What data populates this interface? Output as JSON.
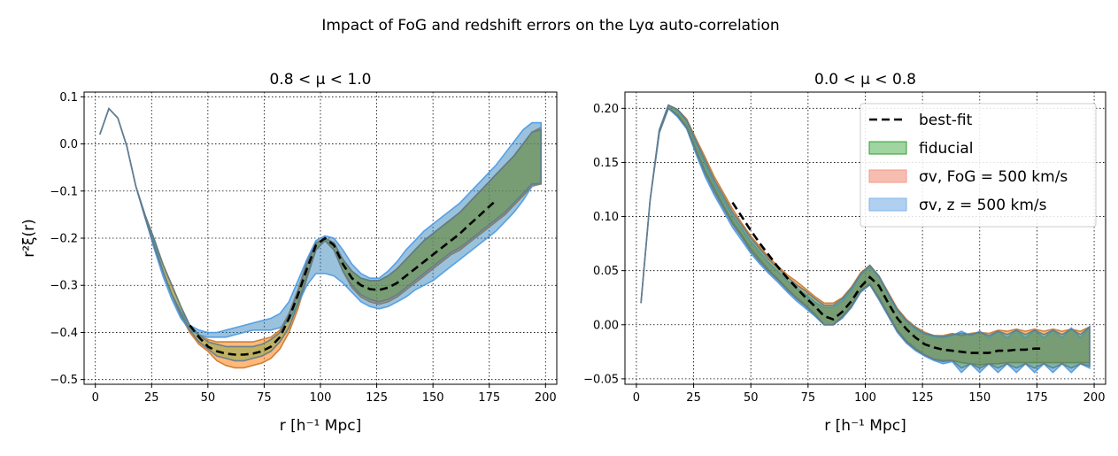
{
  "figure": {
    "title": "Impact of FoG and redshift errors on the Lyα auto-correlation"
  },
  "colors": {
    "best_fit": "#000000",
    "fiducial": "#2ca02c",
    "fog": "#ff7f0e",
    "fog_legend": "#f7b6a8",
    "z_error": "#1f77b4",
    "z_error_legend": "#a9cbf0",
    "overlap": "#5f7a8c"
  },
  "legend": {
    "placement": "top-right of right panel",
    "entries": [
      {
        "key": "best_fit",
        "label": "best-fit"
      },
      {
        "key": "fiducial",
        "label": "fiducial"
      },
      {
        "key": "fog",
        "label": "σv, FoG = 500 km/s"
      },
      {
        "key": "z_error",
        "label": "σv, z = 500 km/s"
      }
    ]
  },
  "chart_data": [
    {
      "type": "line",
      "title": "0.8 < μ < 1.0",
      "xlabel": "r [h⁻¹ Mpc]",
      "ylabel": "r²ξ(r)",
      "xlim": [
        -5,
        205
      ],
      "ylim": [
        -0.51,
        0.11
      ],
      "grid": true,
      "x_ticks": [
        0,
        25,
        50,
        75,
        100,
        125,
        150,
        175,
        200
      ],
      "x_tick_labels": [
        "0",
        "25",
        "50",
        "75",
        "100",
        "125",
        "150",
        "175",
        "200"
      ],
      "y_ticks": [
        -0.5,
        -0.4,
        -0.3,
        -0.2,
        -0.1,
        0.0,
        0.1
      ],
      "y_tick_labels": [
        "−0.5",
        "−0.4",
        "−0.3",
        "−0.2",
        "−0.1",
        "0.0",
        "0.1"
      ],
      "x": [
        2,
        6,
        10,
        14,
        18,
        22,
        26,
        30,
        34,
        38,
        42,
        46,
        50,
        54,
        58,
        62,
        66,
        70,
        74,
        78,
        82,
        86,
        90,
        94,
        98,
        102,
        106,
        110,
        114,
        118,
        122,
        126,
        130,
        134,
        138,
        142,
        146,
        150,
        154,
        158,
        162,
        166,
        170,
        174,
        178,
        182,
        186,
        190,
        194,
        198
      ],
      "series": [
        {
          "name": "σv, FoG = 500 km/s",
          "band": true,
          "lower": [
            0.02,
            0.075,
            0.055,
            -0.005,
            -0.09,
            -0.155,
            -0.215,
            -0.27,
            -0.32,
            -0.365,
            -0.4,
            -0.425,
            -0.44,
            -0.46,
            -0.47,
            -0.475,
            -0.475,
            -0.47,
            -0.465,
            -0.455,
            -0.435,
            -0.4,
            -0.35,
            -0.285,
            -0.225,
            -0.205,
            -0.225,
            -0.27,
            -0.305,
            -0.325,
            -0.335,
            -0.34,
            -0.335,
            -0.325,
            -0.31,
            -0.295,
            -0.28,
            -0.265,
            -0.25,
            -0.235,
            -0.225,
            -0.21,
            -0.195,
            -0.18,
            -0.165,
            -0.15,
            -0.13,
            -0.11,
            -0.09,
            -0.085
          ],
          "upper": [
            0.02,
            0.075,
            0.055,
            -0.005,
            -0.09,
            -0.15,
            -0.2,
            -0.255,
            -0.3,
            -0.345,
            -0.385,
            -0.405,
            -0.415,
            -0.42,
            -0.42,
            -0.42,
            -0.42,
            -0.42,
            -0.415,
            -0.41,
            -0.395,
            -0.36,
            -0.31,
            -0.25,
            -0.21,
            -0.2,
            -0.21,
            -0.245,
            -0.27,
            -0.285,
            -0.29,
            -0.29,
            -0.28,
            -0.265,
            -0.245,
            -0.225,
            -0.205,
            -0.19,
            -0.175,
            -0.16,
            -0.145,
            -0.125,
            -0.105,
            -0.085,
            -0.065,
            -0.045,
            -0.025,
            0.0,
            0.025,
            0.035
          ]
        },
        {
          "name": "σv, z = 500 km/s",
          "band": true,
          "lower": [
            0.02,
            0.075,
            0.055,
            -0.005,
            -0.09,
            -0.155,
            -0.22,
            -0.28,
            -0.33,
            -0.37,
            -0.395,
            -0.405,
            -0.41,
            -0.41,
            -0.41,
            -0.405,
            -0.4,
            -0.395,
            -0.395,
            -0.395,
            -0.39,
            -0.375,
            -0.34,
            -0.3,
            -0.275,
            -0.275,
            -0.28,
            -0.295,
            -0.315,
            -0.335,
            -0.345,
            -0.35,
            -0.345,
            -0.335,
            -0.325,
            -0.31,
            -0.3,
            -0.29,
            -0.275,
            -0.26,
            -0.245,
            -0.23,
            -0.215,
            -0.2,
            -0.185,
            -0.165,
            -0.145,
            -0.12,
            -0.09,
            -0.08
          ],
          "upper": [
            0.02,
            0.075,
            0.055,
            -0.005,
            -0.09,
            -0.15,
            -0.205,
            -0.27,
            -0.32,
            -0.355,
            -0.385,
            -0.395,
            -0.4,
            -0.4,
            -0.395,
            -0.39,
            -0.385,
            -0.38,
            -0.375,
            -0.37,
            -0.36,
            -0.335,
            -0.29,
            -0.245,
            -0.205,
            -0.195,
            -0.2,
            -0.225,
            -0.255,
            -0.275,
            -0.285,
            -0.285,
            -0.27,
            -0.25,
            -0.225,
            -0.205,
            -0.185,
            -0.17,
            -0.155,
            -0.14,
            -0.125,
            -0.105,
            -0.085,
            -0.065,
            -0.045,
            -0.02,
            0.005,
            0.03,
            0.045,
            0.045
          ]
        },
        {
          "name": "fiducial",
          "band": true,
          "lower": [
            0.02,
            0.075,
            0.055,
            -0.005,
            -0.09,
            -0.155,
            -0.215,
            -0.27,
            -0.32,
            -0.36,
            -0.395,
            -0.42,
            -0.435,
            -0.45,
            -0.455,
            -0.46,
            -0.46,
            -0.455,
            -0.45,
            -0.44,
            -0.42,
            -0.39,
            -0.34,
            -0.28,
            -0.225,
            -0.205,
            -0.225,
            -0.27,
            -0.3,
            -0.32,
            -0.33,
            -0.335,
            -0.33,
            -0.32,
            -0.305,
            -0.29,
            -0.275,
            -0.26,
            -0.245,
            -0.23,
            -0.22,
            -0.205,
            -0.19,
            -0.175,
            -0.16,
            -0.145,
            -0.125,
            -0.105,
            -0.085,
            -0.085
          ],
          "upper": [
            0.02,
            0.075,
            0.055,
            -0.005,
            -0.09,
            -0.15,
            -0.2,
            -0.255,
            -0.3,
            -0.345,
            -0.385,
            -0.405,
            -0.42,
            -0.425,
            -0.43,
            -0.43,
            -0.43,
            -0.43,
            -0.425,
            -0.415,
            -0.4,
            -0.365,
            -0.315,
            -0.255,
            -0.21,
            -0.2,
            -0.21,
            -0.245,
            -0.27,
            -0.285,
            -0.29,
            -0.29,
            -0.28,
            -0.265,
            -0.245,
            -0.225,
            -0.205,
            -0.19,
            -0.175,
            -0.16,
            -0.145,
            -0.125,
            -0.105,
            -0.085,
            -0.065,
            -0.045,
            -0.025,
            0.0,
            0.025,
            0.03
          ]
        },
        {
          "name": "best-fit",
          "band": false,
          "x": [
            42,
            46,
            50,
            54,
            58,
            62,
            66,
            70,
            74,
            78,
            82,
            86,
            90,
            94,
            98,
            102,
            106,
            110,
            114,
            118,
            122,
            126,
            130,
            134,
            138,
            142,
            146,
            150,
            154,
            158,
            162,
            166,
            170,
            174,
            178
          ],
          "values": [
            -0.385,
            -0.41,
            -0.43,
            -0.44,
            -0.445,
            -0.447,
            -0.447,
            -0.445,
            -0.44,
            -0.43,
            -0.41,
            -0.37,
            -0.32,
            -0.265,
            -0.215,
            -0.2,
            -0.215,
            -0.255,
            -0.285,
            -0.3,
            -0.308,
            -0.31,
            -0.305,
            -0.295,
            -0.28,
            -0.265,
            -0.25,
            -0.235,
            -0.22,
            -0.205,
            -0.19,
            -0.172,
            -0.155,
            -0.137,
            -0.12
          ]
        }
      ]
    },
    {
      "type": "line",
      "title": "0.0 < μ < 0.8",
      "xlabel": "r [h⁻¹ Mpc]",
      "ylabel": "",
      "xlim": [
        -5,
        205
      ],
      "ylim": [
        -0.055,
        0.215
      ],
      "grid": true,
      "x_ticks": [
        0,
        25,
        50,
        75,
        100,
        125,
        150,
        175,
        200
      ],
      "x_tick_labels": [
        "0",
        "25",
        "50",
        "75",
        "100",
        "125",
        "150",
        "175",
        "200"
      ],
      "y_ticks": [
        -0.05,
        0.0,
        0.05,
        0.1,
        0.15,
        0.2
      ],
      "y_tick_labels": [
        "−0.05",
        "0.00",
        "0.05",
        "0.10",
        "0.15",
        "0.20"
      ],
      "x": [
        2,
        6,
        10,
        14,
        18,
        22,
        26,
        30,
        34,
        38,
        42,
        46,
        50,
        54,
        58,
        62,
        66,
        70,
        74,
        78,
        82,
        86,
        90,
        94,
        98,
        102,
        106,
        110,
        114,
        118,
        122,
        126,
        130,
        134,
        138,
        142,
        146,
        150,
        154,
        158,
        162,
        166,
        170,
        174,
        178,
        182,
        186,
        190,
        194,
        198
      ],
      "series": [
        {
          "name": "σv, FoG = 500 km/s",
          "band": true,
          "lower": [
            0.02,
            0.115,
            0.178,
            0.2,
            0.194,
            0.183,
            0.162,
            0.142,
            0.126,
            0.11,
            0.095,
            0.083,
            0.07,
            0.06,
            0.05,
            0.042,
            0.033,
            0.025,
            0.018,
            0.01,
            0.0,
            0.0,
            0.008,
            0.018,
            0.032,
            0.038,
            0.025,
            0.01,
            -0.005,
            -0.015,
            -0.022,
            -0.028,
            -0.032,
            -0.033,
            -0.033,
            -0.035,
            -0.036,
            -0.037,
            -0.036,
            -0.036,
            -0.035,
            -0.035,
            -0.035,
            -0.035,
            -0.035,
            -0.035,
            -0.035,
            -0.035,
            -0.035,
            -0.035
          ],
          "upper": [
            0.02,
            0.115,
            0.18,
            0.203,
            0.199,
            0.19,
            0.172,
            0.155,
            0.137,
            0.122,
            0.107,
            0.094,
            0.082,
            0.072,
            0.062,
            0.054,
            0.046,
            0.04,
            0.033,
            0.026,
            0.02,
            0.02,
            0.025,
            0.035,
            0.048,
            0.055,
            0.045,
            0.03,
            0.015,
            0.005,
            -0.002,
            -0.007,
            -0.01,
            -0.01,
            -0.008,
            -0.01,
            -0.008,
            -0.007,
            -0.008,
            -0.005,
            -0.006,
            -0.004,
            -0.006,
            -0.004,
            -0.006,
            -0.004,
            -0.006,
            -0.004,
            -0.006,
            -0.002
          ]
        },
        {
          "name": "σv, z = 500 km/s",
          "band": true,
          "lower": [
            0.02,
            0.115,
            0.177,
            0.2,
            0.192,
            0.181,
            0.158,
            0.137,
            0.12,
            0.105,
            0.09,
            0.078,
            0.066,
            0.056,
            0.047,
            0.039,
            0.03,
            0.022,
            0.015,
            0.008,
            0.0,
            0.0,
            0.006,
            0.016,
            0.03,
            0.037,
            0.023,
            0.008,
            -0.007,
            -0.017,
            -0.024,
            -0.029,
            -0.033,
            -0.036,
            -0.034,
            -0.044,
            -0.036,
            -0.044,
            -0.036,
            -0.044,
            -0.036,
            -0.044,
            -0.036,
            -0.044,
            -0.036,
            -0.044,
            -0.036,
            -0.044,
            -0.036,
            -0.04
          ],
          "upper": [
            0.02,
            0.115,
            0.18,
            0.203,
            0.198,
            0.188,
            0.168,
            0.149,
            0.131,
            0.116,
            0.101,
            0.089,
            0.077,
            0.067,
            0.057,
            0.049,
            0.041,
            0.034,
            0.028,
            0.021,
            0.016,
            0.016,
            0.022,
            0.032,
            0.046,
            0.054,
            0.044,
            0.028,
            0.013,
            0.003,
            -0.004,
            -0.009,
            -0.011,
            -0.012,
            -0.01,
            -0.006,
            -0.01,
            -0.006,
            -0.012,
            -0.006,
            -0.012,
            -0.005,
            -0.012,
            -0.005,
            -0.012,
            -0.005,
            -0.012,
            -0.003,
            -0.012,
            -0.002
          ]
        },
        {
          "name": "fiducial",
          "band": true,
          "lower": [
            0.02,
            0.115,
            0.178,
            0.2,
            0.193,
            0.182,
            0.16,
            0.14,
            0.123,
            0.108,
            0.093,
            0.081,
            0.068,
            0.058,
            0.049,
            0.041,
            0.032,
            0.024,
            0.017,
            0.009,
            0.0,
            0.0,
            0.007,
            0.017,
            0.031,
            0.037,
            0.024,
            0.009,
            -0.006,
            -0.016,
            -0.023,
            -0.028,
            -0.032,
            -0.034,
            -0.033,
            -0.04,
            -0.036,
            -0.04,
            -0.036,
            -0.04,
            -0.036,
            -0.04,
            -0.036,
            -0.04,
            -0.036,
            -0.04,
            -0.036,
            -0.04,
            -0.036,
            -0.038
          ],
          "upper": [
            0.02,
            0.115,
            0.18,
            0.203,
            0.199,
            0.189,
            0.17,
            0.152,
            0.134,
            0.119,
            0.104,
            0.092,
            0.08,
            0.07,
            0.06,
            0.052,
            0.044,
            0.037,
            0.031,
            0.024,
            0.018,
            0.018,
            0.024,
            0.034,
            0.047,
            0.055,
            0.045,
            0.029,
            0.014,
            0.004,
            -0.003,
            -0.008,
            -0.01,
            -0.011,
            -0.009,
            -0.008,
            -0.009,
            -0.007,
            -0.01,
            -0.006,
            -0.009,
            -0.005,
            -0.009,
            -0.005,
            -0.009,
            -0.005,
            -0.009,
            -0.004,
            -0.009,
            -0.002
          ]
        },
        {
          "name": "best-fit",
          "band": false,
          "x": [
            42,
            46,
            50,
            54,
            58,
            62,
            66,
            70,
            74,
            78,
            82,
            86,
            90,
            94,
            98,
            102,
            106,
            110,
            114,
            118,
            122,
            126,
            130,
            134,
            138,
            142,
            146,
            150,
            154,
            158,
            162,
            166,
            170,
            174,
            178
          ],
          "values": [
            0.113,
            0.1,
            0.087,
            0.075,
            0.064,
            0.053,
            0.043,
            0.034,
            0.025,
            0.017,
            0.008,
            0.005,
            0.012,
            0.022,
            0.035,
            0.044,
            0.036,
            0.02,
            0.006,
            -0.004,
            -0.012,
            -0.018,
            -0.021,
            -0.023,
            -0.024,
            -0.025,
            -0.026,
            -0.026,
            -0.026,
            -0.024,
            -0.024,
            -0.023,
            -0.023,
            -0.022,
            -0.022
          ]
        }
      ]
    }
  ]
}
